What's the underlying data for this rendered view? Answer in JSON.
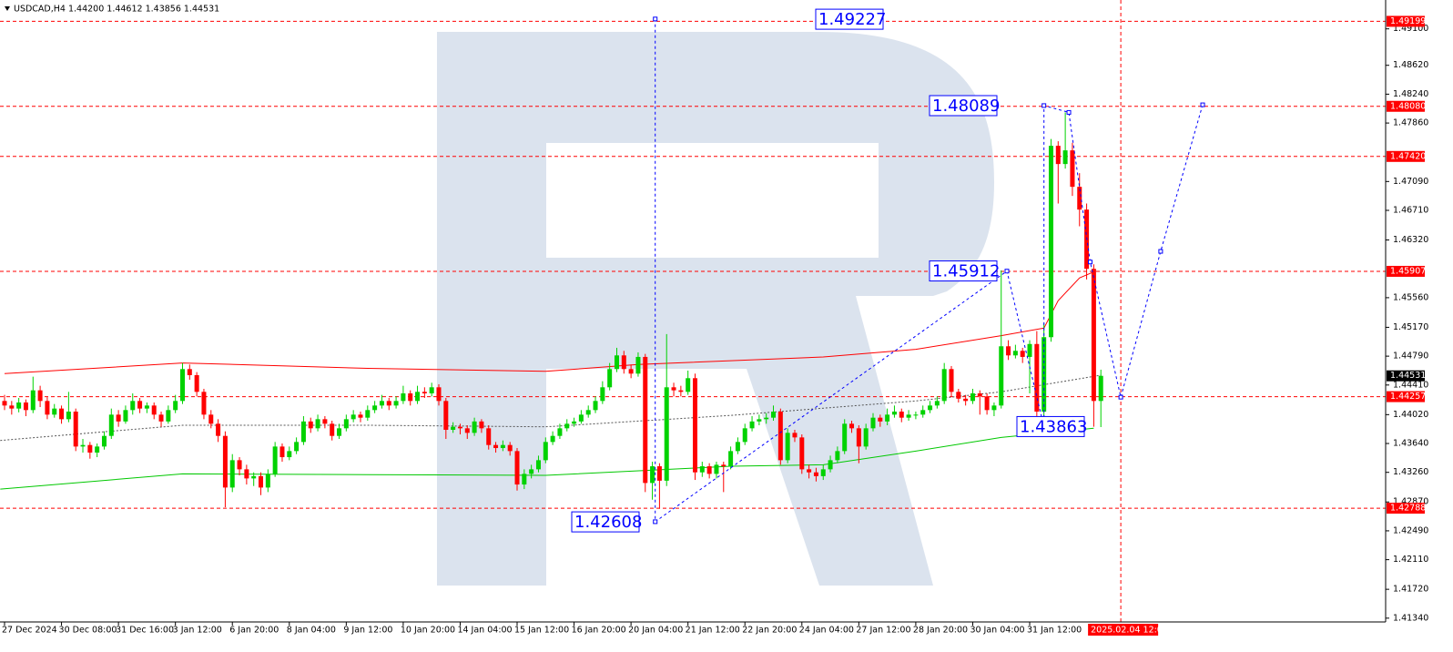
{
  "chart_data": {
    "type": "candlestick",
    "header": "USDCAD,H4  1.44200 1.44612 1.43856 1.44531",
    "colors": {
      "up": "#00d200",
      "down": "#ff0000"
    },
    "ylim": [
      1.4129,
      1.4948
    ],
    "xlim": [
      -0.64,
      194
    ],
    "yticks": [
      {
        "value": 1.491,
        "label": "1.49100"
      },
      {
        "value": 1.4862,
        "label": "1.48620"
      },
      {
        "value": 1.4824,
        "label": "1.48240"
      },
      {
        "value": 1.4786,
        "label": "1.47860"
      },
      {
        "value": 1.4709,
        "label": "1.47090"
      },
      {
        "value": 1.4671,
        "label": "1.46710"
      },
      {
        "value": 1.4632,
        "label": "1.46320"
      },
      {
        "value": 1.4556,
        "label": "1.45560"
      },
      {
        "value": 1.4517,
        "label": "1.45170"
      },
      {
        "value": 1.4479,
        "label": "1.44790"
      },
      {
        "value": 1.4441,
        "label": "1.44410"
      },
      {
        "value": 1.4402,
        "label": "1.44020"
      },
      {
        "value": 1.4364,
        "label": "1.43640"
      },
      {
        "value": 1.4326,
        "label": "1.43260"
      },
      {
        "value": 1.4287,
        "label": "1.42870"
      },
      {
        "value": 1.4249,
        "label": "1.42490"
      },
      {
        "value": 1.4211,
        "label": "1.42110"
      },
      {
        "value": 1.4172,
        "label": "1.41720"
      },
      {
        "value": 1.4134,
        "label": "1.41340"
      }
    ],
    "xticks": [
      {
        "value": 0,
        "label": "27 Dec 2024"
      },
      {
        "value": 8,
        "label": "30 Dec 08:00"
      },
      {
        "value": 16,
        "label": "31 Dec 16:00"
      },
      {
        "value": 24,
        "label": "3 Jan 12:00"
      },
      {
        "value": 32,
        "label": "6 Jan 20:00"
      },
      {
        "value": 40,
        "label": "8 Jan 04:00"
      },
      {
        "value": 48,
        "label": "9 Jan 12:00"
      },
      {
        "value": 56,
        "label": "10 Jan 20:00"
      },
      {
        "value": 64,
        "label": "14 Jan 04:00"
      },
      {
        "value": 72,
        "label": "15 Jan 12:00"
      },
      {
        "value": 80,
        "label": "16 Jan 20:00"
      },
      {
        "value": 88,
        "label": "20 Jan 04:00"
      },
      {
        "value": 96,
        "label": "21 Jan 12:00"
      },
      {
        "value": 104,
        "label": "22 Jan 20:00"
      },
      {
        "value": 112,
        "label": "24 Jan 04:00"
      },
      {
        "value": 120,
        "label": "27 Jan 12:00"
      },
      {
        "value": 128,
        "label": "28 Jan 20:00"
      },
      {
        "value": 136,
        "label": "30 Jan 04:00"
      },
      {
        "value": 144,
        "label": "31 Jan 12:00"
      }
    ],
    "candles": [
      [
        1.442,
        1.4428,
        1.4408,
        1.4414
      ],
      [
        1.4414,
        1.442,
        1.4402,
        1.441
      ],
      [
        1.441,
        1.4424,
        1.4405,
        1.4418
      ],
      [
        1.4418,
        1.4422,
        1.44,
        1.4408
      ],
      [
        1.4408,
        1.4452,
        1.4404,
        1.4434
      ],
      [
        1.4434,
        1.444,
        1.4412,
        1.442
      ],
      [
        1.442,
        1.4425,
        1.4396,
        1.4402
      ],
      [
        1.4402,
        1.4416,
        1.4398,
        1.441
      ],
      [
        1.441,
        1.4414,
        1.439,
        1.4396
      ],
      [
        1.4396,
        1.4432,
        1.4392,
        1.4406
      ],
      [
        1.4406,
        1.441,
        1.4354,
        1.436
      ],
      [
        1.436,
        1.437,
        1.4352,
        1.4362
      ],
      [
        1.4362,
        1.4366,
        1.4344,
        1.4352
      ],
      [
        1.4352,
        1.4364,
        1.4346,
        1.436
      ],
      [
        1.436,
        1.438,
        1.4356,
        1.4374
      ],
      [
        1.4374,
        1.441,
        1.437,
        1.4402
      ],
      [
        1.4402,
        1.4408,
        1.4386,
        1.4393
      ],
      [
        1.4393,
        1.4414,
        1.439,
        1.4408
      ],
      [
        1.4408,
        1.443,
        1.4402,
        1.442
      ],
      [
        1.442,
        1.4424,
        1.4404,
        1.441
      ],
      [
        1.441,
        1.4418,
        1.4404,
        1.4414
      ],
      [
        1.4414,
        1.4418,
        1.4396,
        1.4402
      ],
      [
        1.4402,
        1.4406,
        1.4386,
        1.4393
      ],
      [
        1.4393,
        1.4414,
        1.439,
        1.4408
      ],
      [
        1.4408,
        1.4428,
        1.4404,
        1.442
      ],
      [
        1.442,
        1.447,
        1.4416,
        1.4462
      ],
      [
        1.4462,
        1.4468,
        1.4448,
        1.4454
      ],
      [
        1.4454,
        1.4458,
        1.4426,
        1.4432
      ],
      [
        1.4432,
        1.4436,
        1.4396,
        1.4402
      ],
      [
        1.4402,
        1.4408,
        1.4384,
        1.439
      ],
      [
        1.439,
        1.4396,
        1.4366,
        1.4374
      ],
      [
        1.4374,
        1.438,
        1.428,
        1.4306
      ],
      [
        1.4306,
        1.435,
        1.43,
        1.4342
      ],
      [
        1.4342,
        1.4346,
        1.4322,
        1.433
      ],
      [
        1.433,
        1.4336,
        1.431,
        1.4318
      ],
      [
        1.4318,
        1.4326,
        1.4308,
        1.4321
      ],
      [
        1.4321,
        1.4326,
        1.4296,
        1.4306
      ],
      [
        1.4306,
        1.433,
        1.43,
        1.4324
      ],
      [
        1.4324,
        1.4366,
        1.432,
        1.436
      ],
      [
        1.436,
        1.4364,
        1.434,
        1.4346
      ],
      [
        1.4346,
        1.436,
        1.4342,
        1.4354
      ],
      [
        1.4354,
        1.4372,
        1.435,
        1.4366
      ],
      [
        1.4366,
        1.44,
        1.4362,
        1.4393
      ],
      [
        1.4393,
        1.4398,
        1.4378,
        1.4384
      ],
      [
        1.4384,
        1.4402,
        1.438,
        1.4396
      ],
      [
        1.4396,
        1.44,
        1.4384,
        1.439
      ],
      [
        1.439,
        1.4394,
        1.4368,
        1.4374
      ],
      [
        1.4374,
        1.439,
        1.437,
        1.4384
      ],
      [
        1.4384,
        1.4402,
        1.438,
        1.4396
      ],
      [
        1.4396,
        1.4408,
        1.4392,
        1.4402
      ],
      [
        1.4402,
        1.4406,
        1.4392,
        1.4398
      ],
      [
        1.4398,
        1.4414,
        1.4394,
        1.4408
      ],
      [
        1.4408,
        1.442,
        1.4404,
        1.4414
      ],
      [
        1.4414,
        1.4428,
        1.441,
        1.442
      ],
      [
        1.442,
        1.4424,
        1.4408,
        1.4414
      ],
      [
        1.4414,
        1.4426,
        1.441,
        1.442
      ],
      [
        1.442,
        1.444,
        1.4416,
        1.443
      ],
      [
        1.443,
        1.4434,
        1.4414,
        1.442
      ],
      [
        1.442,
        1.444,
        1.4416,
        1.4432
      ],
      [
        1.4432,
        1.4438,
        1.4424,
        1.443
      ],
      [
        1.443,
        1.4444,
        1.4426,
        1.4438
      ],
      [
        1.4438,
        1.4442,
        1.4414,
        1.442
      ],
      [
        1.442,
        1.4424,
        1.437,
        1.4382
      ],
      [
        1.4382,
        1.4392,
        1.4378,
        1.4386
      ],
      [
        1.4386,
        1.439,
        1.4376,
        1.4384
      ],
      [
        1.4384,
        1.4388,
        1.437,
        1.4378
      ],
      [
        1.4378,
        1.4398,
        1.4374,
        1.4393
      ],
      [
        1.4393,
        1.4396,
        1.4378,
        1.4384
      ],
      [
        1.4384,
        1.4388,
        1.4356,
        1.4362
      ],
      [
        1.4362,
        1.4366,
        1.4352,
        1.4358
      ],
      [
        1.4358,
        1.4368,
        1.4354,
        1.4362
      ],
      [
        1.4362,
        1.4366,
        1.4348,
        1.4354
      ],
      [
        1.4354,
        1.4358,
        1.4302,
        1.431
      ],
      [
        1.431,
        1.433,
        1.4304,
        1.4324
      ],
      [
        1.4324,
        1.4336,
        1.4318,
        1.433
      ],
      [
        1.433,
        1.4348,
        1.4326,
        1.4342
      ],
      [
        1.4342,
        1.4372,
        1.4338,
        1.4366
      ],
      [
        1.4366,
        1.438,
        1.4362,
        1.4374
      ],
      [
        1.4374,
        1.439,
        1.437,
        1.4384
      ],
      [
        1.4384,
        1.4396,
        1.438,
        1.439
      ],
      [
        1.439,
        1.4398,
        1.4386,
        1.4393
      ],
      [
        1.4393,
        1.4408,
        1.439,
        1.4402
      ],
      [
        1.4402,
        1.4414,
        1.4398,
        1.4408
      ],
      [
        1.4408,
        1.4426,
        1.4404,
        1.442
      ],
      [
        1.442,
        1.4446,
        1.4416,
        1.4438
      ],
      [
        1.4438,
        1.447,
        1.4434,
        1.4462
      ],
      [
        1.4462,
        1.449,
        1.4458,
        1.448
      ],
      [
        1.448,
        1.4486,
        1.4456,
        1.4462
      ],
      [
        1.4462,
        1.4468,
        1.445,
        1.4456
      ],
      [
        1.4456,
        1.4484,
        1.4452,
        1.4478
      ],
      [
        1.4478,
        1.4482,
        1.43,
        1.4312
      ],
      [
        1.4312,
        1.434,
        1.429,
        1.4334
      ],
      [
        1.4334,
        1.4338,
        1.4278,
        1.4315
      ],
      [
        1.4315,
        1.4508,
        1.4308,
        1.4438
      ],
      [
        1.4438,
        1.4444,
        1.4426,
        1.4434
      ],
      [
        1.4434,
        1.444,
        1.4426,
        1.4432
      ],
      [
        1.4432,
        1.446,
        1.4428,
        1.445
      ],
      [
        1.445,
        1.4456,
        1.4316,
        1.4326
      ],
      [
        1.4326,
        1.434,
        1.432,
        1.4334
      ],
      [
        1.4334,
        1.4338,
        1.4318,
        1.4324
      ],
      [
        1.4324,
        1.434,
        1.4318,
        1.4336
      ],
      [
        1.4336,
        1.434,
        1.43,
        1.4334
      ],
      [
        1.4334,
        1.436,
        1.433,
        1.4354
      ],
      [
        1.4354,
        1.4372,
        1.435,
        1.4366
      ],
      [
        1.4366,
        1.439,
        1.4362,
        1.4384
      ],
      [
        1.4384,
        1.44,
        1.438,
        1.4393
      ],
      [
        1.4393,
        1.4402,
        1.4388,
        1.4396
      ],
      [
        1.4396,
        1.4404,
        1.439,
        1.4398
      ],
      [
        1.4398,
        1.4414,
        1.4394,
        1.4406
      ],
      [
        1.4406,
        1.441,
        1.4336,
        1.4342
      ],
      [
        1.4342,
        1.4384,
        1.4338,
        1.4378
      ],
      [
        1.4378,
        1.4382,
        1.4366,
        1.4372
      ],
      [
        1.4372,
        1.4376,
        1.4324,
        1.433
      ],
      [
        1.433,
        1.4336,
        1.4318,
        1.4326
      ],
      [
        1.4326,
        1.4332,
        1.4314,
        1.4321
      ],
      [
        1.4321,
        1.4336,
        1.4316,
        1.433
      ],
      [
        1.433,
        1.4348,
        1.4326,
        1.4342
      ],
      [
        1.4342,
        1.436,
        1.4338,
        1.4354
      ],
      [
        1.4354,
        1.4396,
        1.435,
        1.439
      ],
      [
        1.439,
        1.4394,
        1.4378,
        1.4384
      ],
      [
        1.4384,
        1.4388,
        1.4338,
        1.436
      ],
      [
        1.436,
        1.439,
        1.4356,
        1.4384
      ],
      [
        1.4384,
        1.4404,
        1.438,
        1.4398
      ],
      [
        1.4398,
        1.4402,
        1.4386,
        1.4393
      ],
      [
        1.4393,
        1.441,
        1.4388,
        1.4402
      ],
      [
        1.4402,
        1.4414,
        1.4398,
        1.4406
      ],
      [
        1.4406,
        1.441,
        1.4392,
        1.4398
      ],
      [
        1.4398,
        1.4408,
        1.4394,
        1.4402
      ],
      [
        1.4402,
        1.4406,
        1.4396,
        1.4402
      ],
      [
        1.4402,
        1.4414,
        1.4398,
        1.4408
      ],
      [
        1.4408,
        1.442,
        1.4404,
        1.4414
      ],
      [
        1.4414,
        1.4426,
        1.441,
        1.442
      ],
      [
        1.442,
        1.447,
        1.4416,
        1.4462
      ],
      [
        1.4462,
        1.4466,
        1.4426,
        1.4432
      ],
      [
        1.4432,
        1.4436,
        1.4418,
        1.4423
      ],
      [
        1.4423,
        1.4428,
        1.4414,
        1.442
      ],
      [
        1.442,
        1.4436,
        1.4416,
        1.443
      ],
      [
        1.443,
        1.4434,
        1.4402,
        1.4426
      ],
      [
        1.4426,
        1.443,
        1.4402,
        1.4408
      ],
      [
        1.4408,
        1.4418,
        1.44,
        1.4414
      ],
      [
        1.4414,
        1.4592,
        1.441,
        1.4492
      ],
      [
        1.4492,
        1.45,
        1.4474,
        1.448
      ],
      [
        1.448,
        1.4494,
        1.4476,
        1.4486
      ],
      [
        1.4486,
        1.449,
        1.447,
        1.4478
      ],
      [
        1.4478,
        1.45,
        1.443,
        1.4495
      ],
      [
        1.4495,
        1.4512,
        1.438,
        1.4406
      ],
      [
        1.4406,
        1.4522,
        1.44,
        1.4504
      ],
      [
        1.4504,
        1.4765,
        1.4498,
        1.4756
      ],
      [
        1.4756,
        1.4762,
        1.468,
        1.4732
      ],
      [
        1.4732,
        1.48,
        1.4726,
        1.475
      ],
      [
        1.475,
        1.476,
        1.469,
        1.4702
      ],
      [
        1.4702,
        1.472,
        1.465,
        1.4672
      ],
      [
        1.4672,
        1.468,
        1.458,
        1.4594
      ],
      [
        1.4594,
        1.46,
        1.4386,
        1.442
      ],
      [
        1.442,
        1.44612,
        1.43856,
        1.44531
      ]
    ],
    "lines": [
      {
        "color": "#ff0000",
        "style": "solid",
        "x": [
          0,
          25,
          51,
          76,
          89,
          115,
          128,
          140,
          146,
          148,
          151,
          153
        ],
        "values": [
          1.4456,
          1.447,
          1.4463,
          1.4459,
          1.4468,
          1.4478,
          1.4488,
          1.4506,
          1.4516,
          1.4552,
          1.4582,
          1.459
        ]
      },
      {
        "color": "#00c800",
        "style": "solid",
        "x": [
          -0.6,
          25,
          51,
          76,
          102,
          115,
          128,
          140,
          153
        ],
        "values": [
          1.4304,
          1.4324,
          1.4323,
          1.4322,
          1.4334,
          1.4336,
          1.4354,
          1.4372,
          1.4384
        ]
      },
      {
        "color": "#555555",
        "style": "dotted",
        "x": [
          -0.6,
          25,
          51,
          76,
          102,
          128,
          140,
          154
        ],
        "values": [
          1.4368,
          1.4388,
          1.4388,
          1.4386,
          1.4401,
          1.442,
          1.4432,
          1.4454
        ]
      }
    ],
    "levels": [
      {
        "value": 1.49199,
        "label": "1.49199"
      },
      {
        "value": 1.4808,
        "label": "1.48080"
      },
      {
        "value": 1.4742,
        "label": "1.47420"
      },
      {
        "value": 1.45907,
        "label": "1.45907"
      },
      {
        "value": 1.44257,
        "label": "1.44257"
      },
      {
        "value": 1.42788,
        "label": "1.42788"
      }
    ],
    "level_color": "#ff0000",
    "current": {
      "value": 1.44531,
      "label": "1.44531"
    },
    "cursor": {
      "x": 156.8,
      "label": "2025.02.04 12:00"
    },
    "forecast": {
      "color": "#0000ff",
      "x": [
        91.4,
        91.4,
        140.8,
        146,
        146,
        149.5,
        152.5,
        156.8,
        162.4,
        168.3
      ],
      "values": [
        1.4923,
        1.4261,
        1.4591,
        1.4386,
        1.4809,
        1.48,
        1.4603,
        1.4425,
        1.4617,
        1.481
      ]
    },
    "price_boxes": [
      {
        "value": 1.49227,
        "label": "1.49227"
      },
      {
        "value": 1.48089,
        "label": "1.48089"
      },
      {
        "value": 1.45912,
        "label": "1.45912"
      },
      {
        "value": 1.42608,
        "label": "1.42608"
      },
      {
        "value": 1.43863,
        "label": "1.43863"
      }
    ]
  }
}
